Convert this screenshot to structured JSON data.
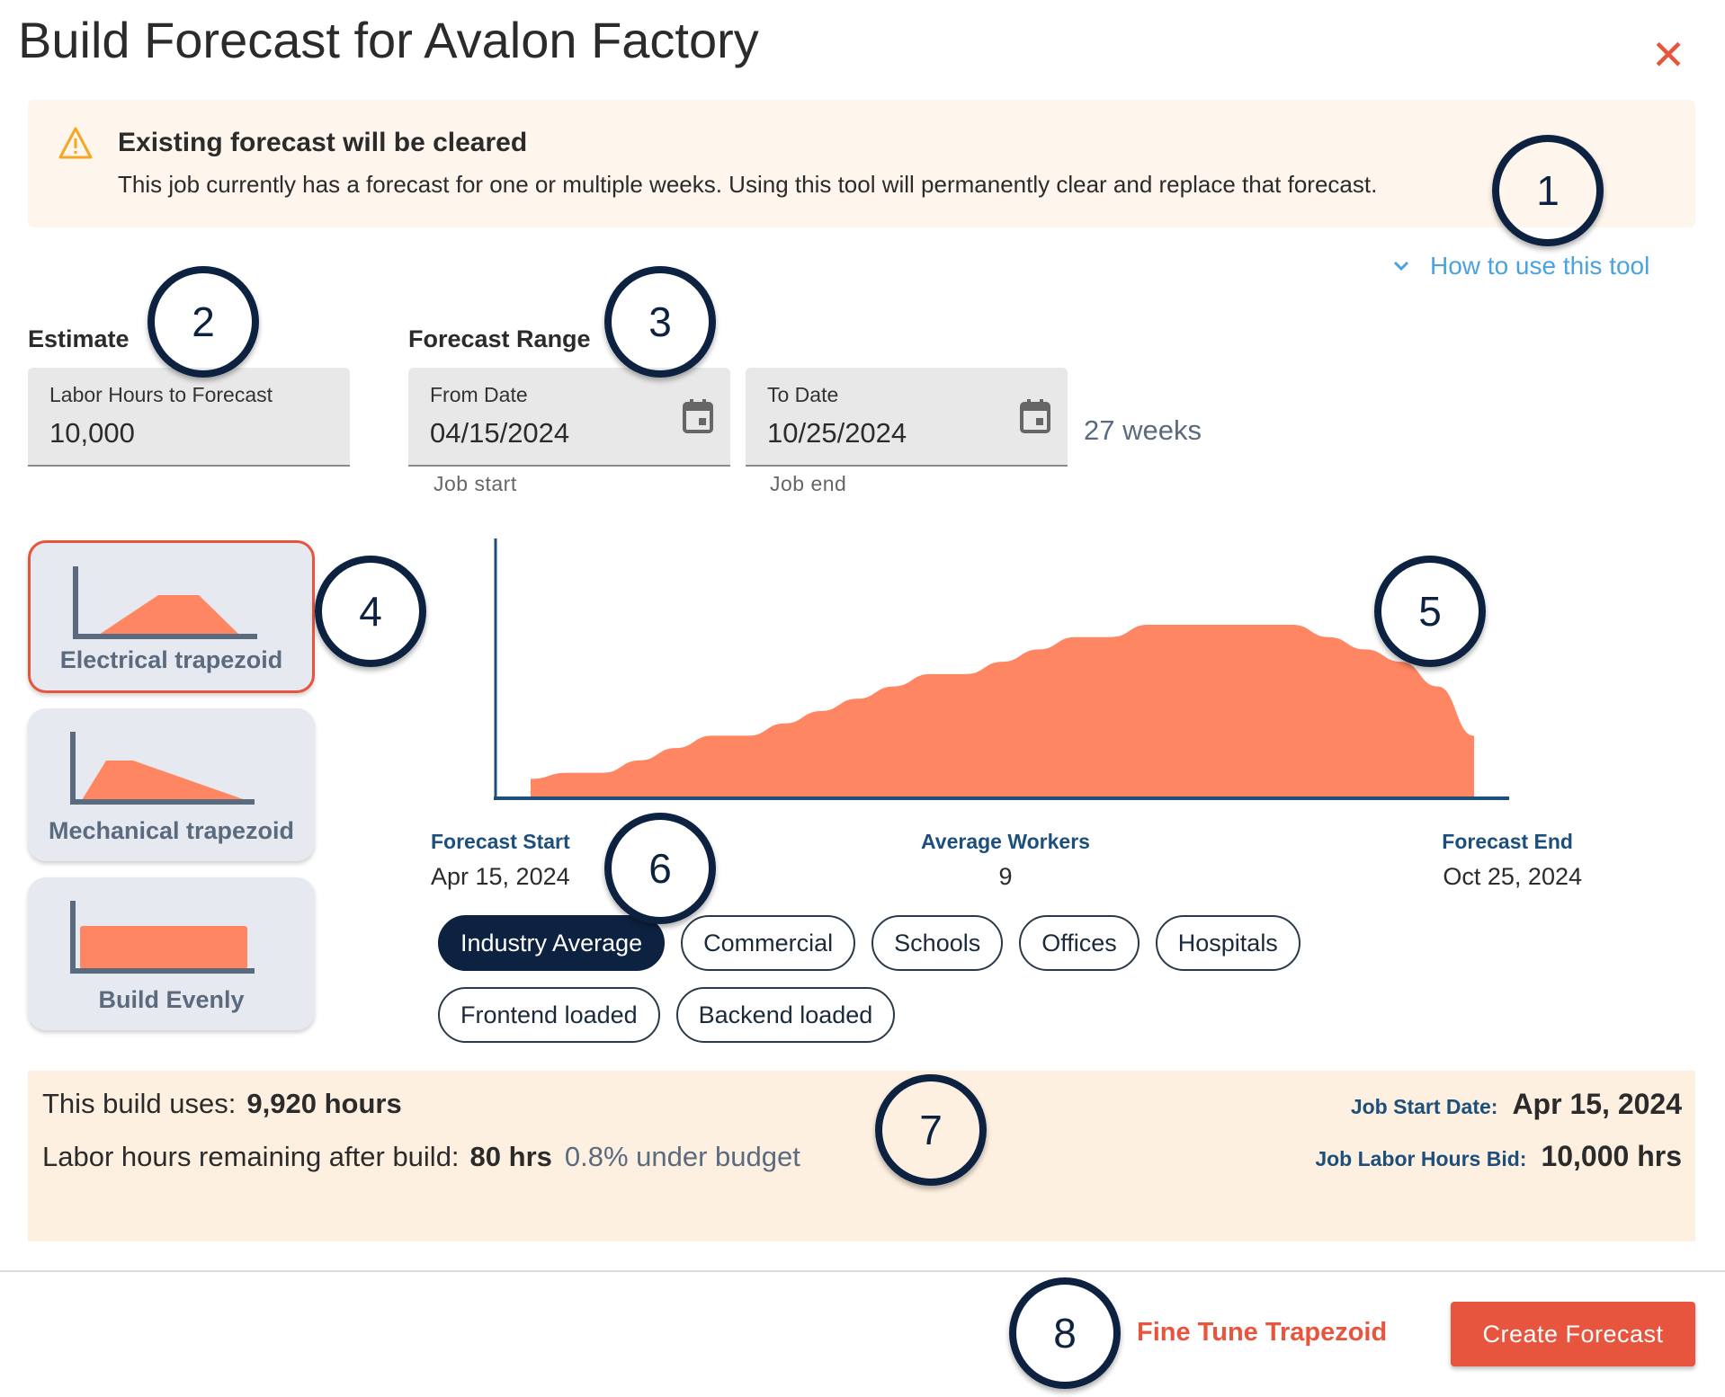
{
  "dialog": {
    "title": "Build Forecast for Avalon Factory",
    "close_icon": "close-icon"
  },
  "warning": {
    "icon": "warning-triangle-icon",
    "heading": "Existing forecast will be cleared",
    "body": "This job currently has a forecast for one or multiple weeks. Using this tool will permanently clear and replace that forecast."
  },
  "help_link": {
    "label": "How to use this tool",
    "icon": "chevron-down-icon"
  },
  "estimate": {
    "section_label": "Estimate",
    "labor_hours": {
      "label": "Labor Hours to Forecast",
      "value": "10,000"
    }
  },
  "forecast_range": {
    "section_label": "Forecast Range",
    "from": {
      "label": "From Date",
      "value": "04/15/2024",
      "helper": "Job start",
      "icon": "calendar-icon"
    },
    "to": {
      "label": "To Date",
      "value": "10/25/2024",
      "helper": "Job end",
      "icon": "calendar-icon"
    },
    "duration": "27 weeks"
  },
  "templates": [
    {
      "label": "Electrical trapezoid",
      "selected": true
    },
    {
      "label": "Mechanical trapezoid",
      "selected": false
    },
    {
      "label": "Build Evenly",
      "selected": false
    }
  ],
  "chart_data": {
    "type": "area",
    "title": "",
    "xlabel": "",
    "ylabel": "",
    "x_unit": "week",
    "values": [
      1.5,
      2,
      2,
      3,
      4,
      5,
      5,
      6,
      7,
      8,
      9,
      10,
      10,
      11,
      12,
      13,
      13,
      14,
      14,
      14,
      14,
      14,
      13,
      12,
      11,
      9,
      5
    ],
    "color": "#ff8663",
    "axis_color": "#1d4f7c",
    "grid": false
  },
  "stats": {
    "start": {
      "label": "Forecast Start",
      "value": "Apr 15, 2024"
    },
    "average": {
      "label": "Average Workers",
      "value": "9"
    },
    "end": {
      "label": "Forecast End",
      "value": "Oct 25, 2024"
    }
  },
  "profiles": [
    {
      "label": "Industry Average",
      "active": true
    },
    {
      "label": "Commercial",
      "active": false
    },
    {
      "label": "Schools",
      "active": false
    },
    {
      "label": "Offices",
      "active": false
    },
    {
      "label": "Hospitals",
      "active": false
    },
    {
      "label": "Frontend loaded",
      "active": false
    },
    {
      "label": "Backend loaded",
      "active": false
    }
  ],
  "summary": {
    "uses_label": "This build uses:",
    "uses_value": "9,920 hours",
    "remaining_label": "Labor hours remaining after build:",
    "remaining_value": "80 hrs",
    "budget_note": "0.8% under budget",
    "job_start_label": "Job Start Date:",
    "job_start_value": "Apr 15, 2024",
    "bid_label": "Job Labor Hours Bid:",
    "bid_value": "10,000 hrs"
  },
  "footer": {
    "fine_tune": "Fine Tune Trapezoid",
    "create": "Create Forecast"
  },
  "annotations": [
    "1",
    "2",
    "3",
    "4",
    "5",
    "6",
    "7",
    "8"
  ],
  "colors": {
    "accent": "#e8553e",
    "navy": "#0d2240",
    "link": "#4aa3df",
    "banner": "#fef5ec",
    "summary": "#fdf0e1"
  }
}
